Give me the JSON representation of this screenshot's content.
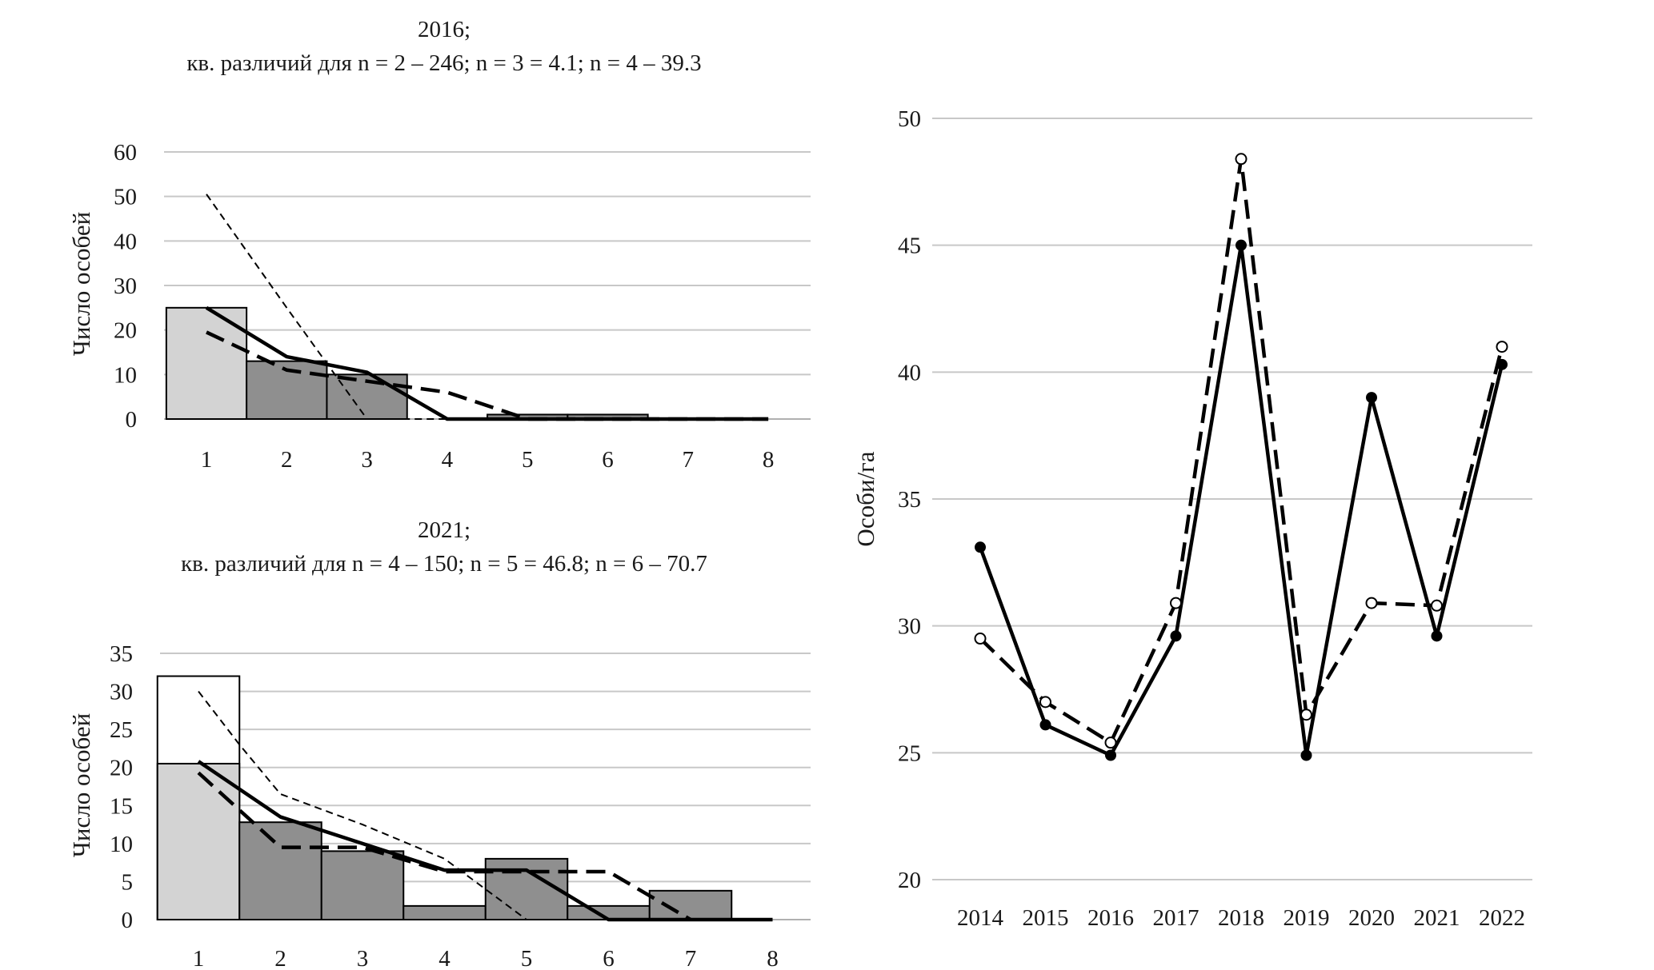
{
  "chart_data": [
    {
      "type": "bar",
      "title": "2016;",
      "subtitle": "кв. различий для n = 2 – 246; n = 3 = 4.1; n = 4 – 39.3",
      "xlabel": "",
      "ylabel": "Число особей",
      "categories": [
        "1",
        "2",
        "3",
        "4",
        "5",
        "6",
        "7",
        "8"
      ],
      "yticks": [
        "0",
        "10",
        "20",
        "30",
        "40",
        "50",
        "60"
      ],
      "ylim": [
        0,
        60
      ],
      "grid": true,
      "bars": [
        {
          "name": "bar-light",
          "color": "#d3d3d3",
          "from": 0.5,
          "to": 1.5,
          "value": 25
        },
        {
          "name": "bar-dark",
          "color": "#8f8f8f",
          "from": 1.5,
          "to": 2.5,
          "value": 13
        },
        {
          "name": "bar-dark",
          "color": "#8f8f8f",
          "from": 2.5,
          "to": 3.5,
          "value": 10
        },
        {
          "name": "bar-dark",
          "color": "#8f8f8f",
          "from": 4.5,
          "to": 5.5,
          "value": 1
        },
        {
          "name": "bar-dark",
          "color": "#8f8f8f",
          "from": 5.5,
          "to": 6.5,
          "value": 1
        }
      ],
      "series": [
        {
          "name": "solid",
          "style": "solid",
          "x": [
            1,
            2,
            3,
            4,
            5,
            6,
            7,
            8
          ],
          "values": [
            25,
            14,
            10.5,
            0,
            0,
            0,
            0,
            0
          ]
        },
        {
          "name": "dashed",
          "style": "dashed",
          "x": [
            1,
            2,
            3,
            4,
            5,
            6,
            7,
            8
          ],
          "values": [
            19.5,
            11,
            8.5,
            6,
            0,
            0,
            0,
            0
          ]
        },
        {
          "name": "thin-dashed",
          "style": "thin-dashed",
          "x": [
            1,
            2,
            3,
            4
          ],
          "values": [
            50.5,
            25,
            0,
            0
          ]
        }
      ]
    },
    {
      "type": "bar",
      "title": "2021;",
      "subtitle": "кв. различий для n = 4 – 150; n = 5 = 46.8; n = 6 – 70.7",
      "xlabel": "",
      "ylabel": "Число особей",
      "categories": [
        "1",
        "2",
        "3",
        "4",
        "5",
        "6",
        "7",
        "8"
      ],
      "yticks": [
        "0",
        "5",
        "10",
        "15",
        "20",
        "25",
        "30",
        "35"
      ],
      "ylim": [
        0,
        35
      ],
      "grid": true,
      "bars": [
        {
          "name": "bar-outline",
          "color": "#ffffff",
          "from": 0.5,
          "to": 1.5,
          "value": 32
        },
        {
          "name": "bar-light",
          "color": "#d3d3d3",
          "from": 0.5,
          "to": 1.5,
          "value": 20.5
        },
        {
          "name": "bar-dark",
          "color": "#8f8f8f",
          "from": 1.5,
          "to": 2.5,
          "value": 12.8
        },
        {
          "name": "bar-dark",
          "color": "#8f8f8f",
          "from": 2.5,
          "to": 3.5,
          "value": 9
        },
        {
          "name": "bar-dark",
          "color": "#8f8f8f",
          "from": 3.5,
          "to": 4.5,
          "value": 1.8
        },
        {
          "name": "bar-dark",
          "color": "#8f8f8f",
          "from": 4.5,
          "to": 5.5,
          "value": 8
        },
        {
          "name": "bar-dark",
          "color": "#8f8f8f",
          "from": 5.5,
          "to": 6.5,
          "value": 1.8
        },
        {
          "name": "bar-dark",
          "color": "#8f8f8f",
          "from": 6.5,
          "to": 7.5,
          "value": 3.8
        }
      ],
      "series": [
        {
          "name": "solid",
          "style": "solid",
          "x": [
            1,
            2,
            3,
            4,
            5,
            6,
            7,
            8
          ],
          "values": [
            20.8,
            13.5,
            10,
            6.5,
            6.5,
            0,
            0,
            0
          ]
        },
        {
          "name": "dashed",
          "style": "dashed",
          "x": [
            1,
            2,
            3,
            4,
            5,
            6,
            7
          ],
          "values": [
            19.3,
            9.5,
            9.5,
            6.3,
            6.3,
            6.3,
            0
          ]
        },
        {
          "name": "thin-dashed",
          "style": "thin-dashed",
          "x": [
            1,
            1.5,
            2,
            3,
            4,
            5,
            6
          ],
          "values": [
            30,
            23,
            16.5,
            12.5,
            8,
            0,
            0
          ]
        }
      ]
    },
    {
      "type": "line",
      "title": "",
      "xlabel": "",
      "ylabel": "Особи/га",
      "categories": [
        "2014",
        "2015",
        "2016",
        "2017",
        "2018",
        "2019",
        "2020",
        "2021",
        "2022"
      ],
      "yticks": [
        "20",
        "25",
        "30",
        "35",
        "40",
        "45",
        "50"
      ],
      "ylim": [
        20,
        50
      ],
      "grid": true,
      "series": [
        {
          "name": "solid-filled-markers",
          "style": "solid",
          "marker": "filled",
          "values": [
            33.1,
            26.1,
            24.9,
            29.6,
            45,
            24.9,
            39,
            29.6,
            40.3
          ]
        },
        {
          "name": "dashed-open-markers",
          "style": "dashed",
          "marker": "open",
          "values": [
            29.5,
            27,
            25.4,
            30.9,
            48.4,
            26.5,
            30.9,
            30.8,
            41
          ]
        }
      ]
    }
  ]
}
